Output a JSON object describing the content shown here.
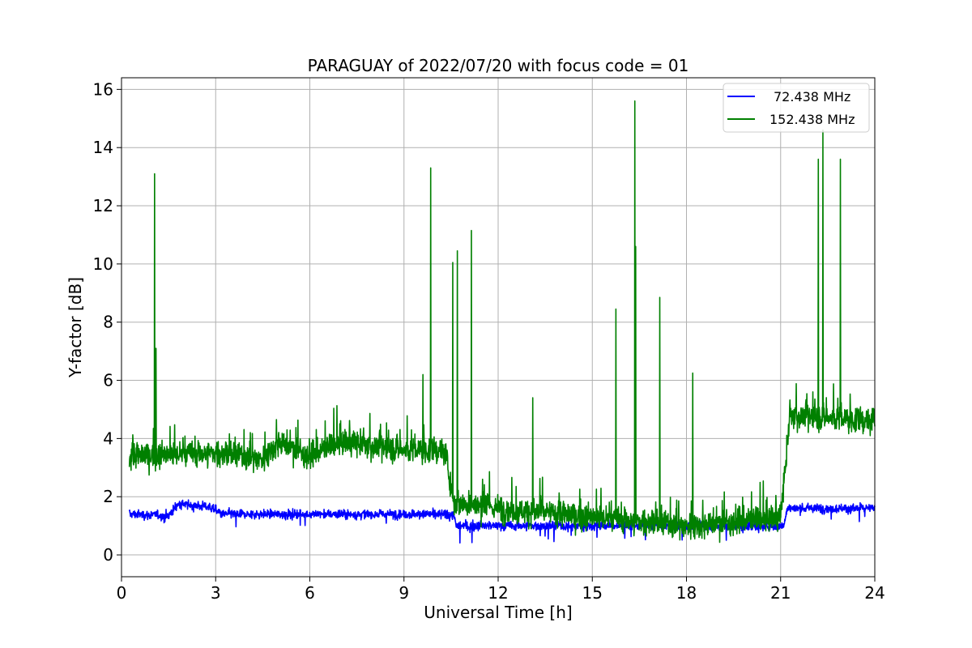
{
  "chart_data": {
    "type": "line",
    "title": "PARAGUAY of 2022/07/20 with focus code = 01",
    "xlabel": "Universal Time [h]",
    "ylabel": "Y-factor [dB]",
    "xlim": [
      0,
      24
    ],
    "ylim": [
      -0.75,
      16.4
    ],
    "xticks": [
      0,
      3,
      6,
      9,
      12,
      15,
      18,
      21,
      24
    ],
    "yticks": [
      0,
      2,
      4,
      6,
      8,
      10,
      12,
      14,
      16
    ],
    "grid": true,
    "legend_position": "top-right",
    "series": [
      {
        "name": "72.438 MHz",
        "color": "#0000ff",
        "x_range": [
          0.25,
          24
        ],
        "baseline_profile": [
          [
            0.25,
            1.4
          ],
          [
            1.5,
            1.35
          ],
          [
            1.8,
            1.75
          ],
          [
            2.8,
            1.65
          ],
          [
            3.2,
            1.4
          ],
          [
            6,
            1.4
          ],
          [
            9,
            1.4
          ],
          [
            10.6,
            1.4
          ],
          [
            10.65,
            1.0
          ],
          [
            21.1,
            1.0
          ],
          [
            21.2,
            1.6
          ],
          [
            24,
            1.6
          ]
        ],
        "min_value": 0.0,
        "max_value": 2.1
      },
      {
        "name": "152.438 MHz",
        "color": "#008000",
        "x_range": [
          0.25,
          24
        ],
        "baseline_profile": [
          [
            0.25,
            3.4
          ],
          [
            3,
            3.5
          ],
          [
            4.5,
            3.3
          ],
          [
            5,
            3.9
          ],
          [
            6,
            3.4
          ],
          [
            7,
            3.9
          ],
          [
            9,
            3.6
          ],
          [
            10.3,
            3.6
          ],
          [
            10.6,
            1.8
          ],
          [
            12,
            1.6
          ],
          [
            15,
            1.3
          ],
          [
            18,
            1.0
          ],
          [
            21,
            1.3
          ],
          [
            21.3,
            4.8
          ],
          [
            24,
            4.6
          ]
        ],
        "spikes": [
          {
            "x": 1.05,
            "y": 13.1
          },
          {
            "x": 1.1,
            "y": 7.1
          },
          {
            "x": 9.6,
            "y": 6.2
          },
          {
            "x": 9.85,
            "y": 13.3
          },
          {
            "x": 10.55,
            "y": 10.05
          },
          {
            "x": 10.7,
            "y": 10.45
          },
          {
            "x": 11.15,
            "y": 11.15
          },
          {
            "x": 13.1,
            "y": 5.4
          },
          {
            "x": 15.75,
            "y": 8.45
          },
          {
            "x": 16.35,
            "y": 15.6
          },
          {
            "x": 16.38,
            "y": 10.6
          },
          {
            "x": 17.15,
            "y": 8.85
          },
          {
            "x": 18.2,
            "y": 6.25
          },
          {
            "x": 22.2,
            "y": 13.6
          },
          {
            "x": 22.35,
            "y": 14.6
          },
          {
            "x": 22.9,
            "y": 13.6
          }
        ],
        "min_value": 0.0,
        "max_value": 15.6
      }
    ]
  }
}
